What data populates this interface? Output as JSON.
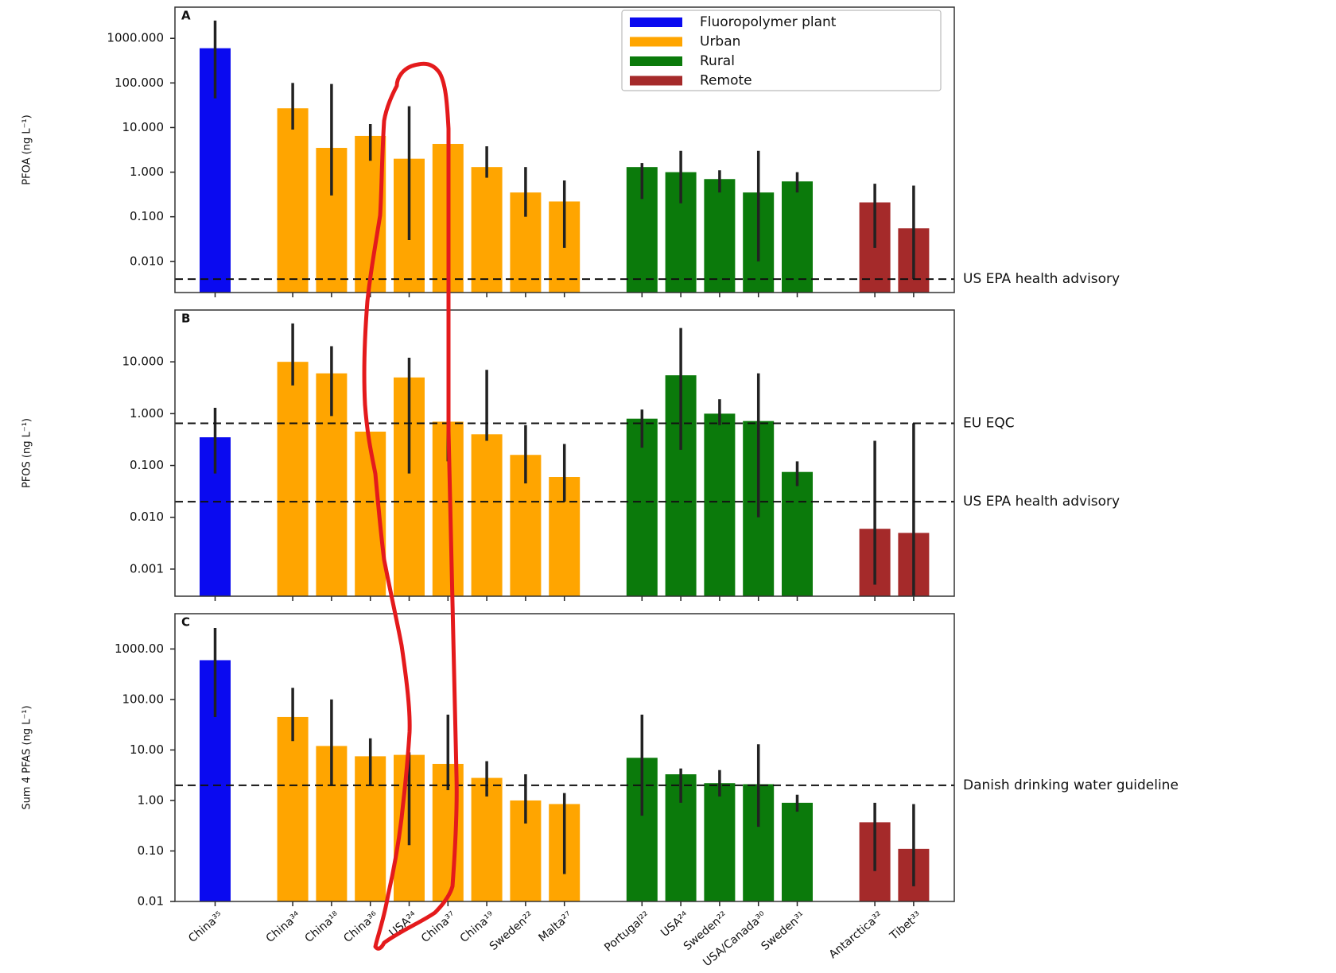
{
  "chart_data": [
    {
      "type": "bar",
      "label": "A",
      "y_label": "PFOA (ng L⁻¹)",
      "log_scale": true,
      "legend": "upper right",
      "ylim": [
        0.002,
        5000
      ],
      "yticks": [
        {
          "value": 0.01,
          "label": "0.010"
        },
        {
          "value": 0.1,
          "label": "0.100"
        },
        {
          "value": 1,
          "label": "1.000"
        },
        {
          "value": 10,
          "label": "10.000"
        },
        {
          "value": 100,
          "label": "100.000"
        },
        {
          "value": 1000,
          "label": "1000.000"
        }
      ],
      "reference_lines": [
        {
          "value": 0.004,
          "label": "US EPA health advisory"
        }
      ],
      "series": [
        {
          "name": "Fluoropolymer plant",
          "color": "#0a0af0",
          "values": [
            600,
            null,
            null,
            null,
            null,
            null,
            null,
            null,
            null,
            null,
            null,
            null,
            null,
            null,
            null,
            null,
            null,
            null,
            null
          ],
          "error_low": [
            45,
            null,
            null,
            null,
            null,
            null,
            null,
            null,
            null,
            null,
            null,
            null,
            null,
            null,
            null,
            null,
            null,
            null,
            null
          ],
          "error_high": [
            2500,
            null,
            null,
            null,
            null,
            null,
            null,
            null,
            null,
            null,
            null,
            null,
            null,
            null,
            null,
            null,
            null,
            null,
            null
          ]
        },
        {
          "name": "Urban",
          "color": "#ffa500",
          "values": [
            null,
            null,
            27,
            3.5,
            6.5,
            2,
            4.3,
            1.3,
            0.35,
            0.22,
            null,
            null,
            null,
            null,
            null,
            null,
            null,
            null,
            null
          ],
          "error_low": [
            null,
            null,
            9,
            0.3,
            1.8,
            0.03,
            null,
            0.75,
            0.1,
            0.02,
            null,
            null,
            null,
            null,
            null,
            null,
            null,
            null,
            null
          ],
          "error_high": [
            null,
            null,
            100,
            95,
            12,
            30,
            null,
            3.8,
            1.3,
            0.65,
            null,
            null,
            null,
            null,
            null,
            null,
            null,
            null,
            null
          ]
        },
        {
          "name": "Rural",
          "color": "#0b7a0b",
          "values": [
            null,
            null,
            null,
            null,
            null,
            null,
            null,
            null,
            null,
            null,
            null,
            1.3,
            1,
            0.7,
            0.35,
            0.62,
            null,
            null,
            null
          ],
          "error_low": [
            null,
            null,
            null,
            null,
            null,
            null,
            null,
            null,
            null,
            null,
            null,
            0.25,
            0.2,
            0.35,
            0.01,
            0.35,
            null,
            null,
            null
          ],
          "error_high": [
            null,
            null,
            null,
            null,
            null,
            null,
            null,
            null,
            null,
            null,
            null,
            1.6,
            3,
            1.1,
            3,
            1,
            null,
            null,
            null
          ]
        },
        {
          "name": "Remote",
          "color": "#a52a2a",
          "values": [
            null,
            null,
            null,
            null,
            null,
            null,
            null,
            null,
            null,
            null,
            null,
            null,
            null,
            null,
            null,
            null,
            null,
            0.21,
            0.055
          ],
          "error_low": [
            null,
            null,
            null,
            null,
            null,
            null,
            null,
            null,
            null,
            null,
            null,
            null,
            null,
            null,
            null,
            null,
            null,
            0.02,
            0.004
          ],
          "error_high": [
            null,
            null,
            null,
            null,
            null,
            null,
            null,
            null,
            null,
            null,
            null,
            null,
            null,
            null,
            null,
            null,
            null,
            0.55,
            0.5
          ]
        }
      ]
    },
    {
      "type": "bar",
      "label": "B",
      "y_label": "PFOS (ng L⁻¹)",
      "log_scale": true,
      "ylim": [
        0.0003,
        100
      ],
      "yticks": [
        {
          "value": 0.001,
          "label": "0.001"
        },
        {
          "value": 0.01,
          "label": "0.010"
        },
        {
          "value": 0.1,
          "label": "0.100"
        },
        {
          "value": 1,
          "label": "1.000"
        },
        {
          "value": 10,
          "label": "10.000"
        }
      ],
      "reference_lines": [
        {
          "value": 0.65,
          "label": "EU EQC"
        },
        {
          "value": 0.02,
          "label": "US EPA health advisory"
        }
      ],
      "series": [
        {
          "color": "#0a0af0",
          "values": [
            0.35,
            null,
            null,
            null,
            null,
            null,
            null,
            null,
            null,
            null,
            null,
            null,
            null,
            null,
            null,
            null,
            null,
            null,
            null
          ],
          "error_low": [
            0.07,
            null,
            null,
            null,
            null,
            null,
            null,
            null,
            null,
            null,
            null,
            null,
            null,
            null,
            null,
            null,
            null,
            null,
            null
          ],
          "error_high": [
            1.3,
            null,
            null,
            null,
            null,
            null,
            null,
            null,
            null,
            null,
            null,
            null,
            null,
            null,
            null,
            null,
            null,
            null,
            null
          ]
        },
        {
          "color": "#ffa500",
          "values": [
            null,
            null,
            10,
            6,
            0.45,
            5,
            0.7,
            0.4,
            0.16,
            0.06,
            null,
            null,
            null,
            null,
            null,
            null,
            null,
            null,
            null
          ],
          "error_low": [
            null,
            null,
            3.5,
            0.9,
            null,
            0.07,
            0.12,
            0.3,
            0.045,
            0.02,
            null,
            null,
            null,
            null,
            null,
            null,
            null,
            null,
            null
          ],
          "error_high": [
            null,
            null,
            55,
            20,
            null,
            12,
            1.5,
            7,
            0.6,
            0.26,
            null,
            null,
            null,
            null,
            null,
            null,
            null,
            null,
            null
          ]
        },
        {
          "color": "#0b7a0b",
          "values": [
            null,
            null,
            null,
            null,
            null,
            null,
            null,
            null,
            null,
            null,
            null,
            0.8,
            5.5,
            1,
            0.72,
            0.075,
            null,
            null,
            null
          ],
          "error_low": [
            null,
            null,
            null,
            null,
            null,
            null,
            null,
            null,
            null,
            null,
            null,
            0.22,
            0.2,
            0.6,
            0.01,
            0.04,
            null,
            null,
            null
          ],
          "error_high": [
            null,
            null,
            null,
            null,
            null,
            null,
            null,
            null,
            null,
            null,
            null,
            1.2,
            45,
            1.9,
            6,
            0.12,
            null,
            null,
            null
          ]
        },
        {
          "color": "#a52a2a",
          "values": [
            null,
            null,
            null,
            null,
            null,
            null,
            null,
            null,
            null,
            null,
            null,
            null,
            null,
            null,
            null,
            null,
            null,
            0.006,
            0.005
          ],
          "error_low": [
            null,
            null,
            null,
            null,
            null,
            null,
            null,
            null,
            null,
            null,
            null,
            null,
            null,
            null,
            null,
            null,
            null,
            0.0005,
            0.0003
          ],
          "error_high": [
            null,
            null,
            null,
            null,
            null,
            null,
            null,
            null,
            null,
            null,
            null,
            null,
            null,
            null,
            null,
            null,
            null,
            0.3,
            0.65
          ]
        }
      ]
    },
    {
      "type": "bar",
      "label": "C",
      "y_label": "Sum 4 PFAS (ng L⁻¹)",
      "log_scale": true,
      "categories": [
        "China³⁵",
        null,
        "China³⁴",
        "China¹⁸",
        "China³⁶",
        "USA²⁴",
        "China³⁷",
        "China¹⁹",
        "Sweden²²",
        "Malta²⁷",
        null,
        "Portugal²²",
        "USA²⁴",
        "Sweden²²",
        "USA/Canada³⁰",
        "Sweden³¹",
        null,
        "Antarctica³²",
        "Tibet³³"
      ],
      "ylim": [
        0.01,
        5000
      ],
      "yticks": [
        {
          "value": 0.01,
          "label": "0.01"
        },
        {
          "value": 0.1,
          "label": "0.10"
        },
        {
          "value": 1,
          "label": "1.00"
        },
        {
          "value": 10,
          "label": "10.00"
        },
        {
          "value": 100,
          "label": "100.00"
        },
        {
          "value": 1000,
          "label": "1000.00"
        }
      ],
      "reference_lines": [
        {
          "value": 2,
          "label": "Danish drinking water guideline"
        }
      ],
      "series": [
        {
          "color": "#0a0af0",
          "values": [
            600,
            null,
            null,
            null,
            null,
            null,
            null,
            null,
            null,
            null,
            null,
            null,
            null,
            null,
            null,
            null,
            null,
            null,
            null
          ],
          "error_low": [
            45,
            null,
            null,
            null,
            null,
            null,
            null,
            null,
            null,
            null,
            null,
            null,
            null,
            null,
            null,
            null,
            null,
            null,
            null
          ],
          "error_high": [
            2600,
            null,
            null,
            null,
            null,
            null,
            null,
            null,
            null,
            null,
            null,
            null,
            null,
            null,
            null,
            null,
            null,
            null,
            null
          ]
        },
        {
          "color": "#ffa500",
          "values": [
            null,
            null,
            45,
            12,
            7.5,
            8,
            5.3,
            2.8,
            1,
            0.85,
            null,
            null,
            null,
            null,
            null,
            null,
            null,
            null,
            null
          ],
          "error_low": [
            null,
            null,
            15,
            2,
            2,
            0.13,
            1.6,
            1.2,
            0.35,
            0.035,
            null,
            null,
            null,
            null,
            null,
            null,
            null,
            null,
            null
          ],
          "error_high": [
            null,
            null,
            170,
            100,
            17,
            9,
            50,
            6,
            3.3,
            1.4,
            null,
            null,
            null,
            null,
            null,
            null,
            null,
            null,
            null
          ]
        },
        {
          "color": "#0b7a0b",
          "values": [
            null,
            null,
            null,
            null,
            null,
            null,
            null,
            null,
            null,
            null,
            null,
            7,
            3.3,
            2.2,
            2.1,
            0.9,
            null,
            null,
            null
          ],
          "error_low": [
            null,
            null,
            null,
            null,
            null,
            null,
            null,
            null,
            null,
            null,
            null,
            0.5,
            0.9,
            1.2,
            0.3,
            0.6,
            null,
            null,
            null
          ],
          "error_high": [
            null,
            null,
            null,
            null,
            null,
            null,
            null,
            null,
            null,
            null,
            null,
            50,
            4.3,
            4,
            13,
            1.3,
            null,
            null,
            null
          ]
        },
        {
          "color": "#a52a2a",
          "values": [
            null,
            null,
            null,
            null,
            null,
            null,
            null,
            null,
            null,
            null,
            null,
            null,
            null,
            null,
            null,
            null,
            null,
            0.37,
            0.11
          ],
          "error_low": [
            null,
            null,
            null,
            null,
            null,
            null,
            null,
            null,
            null,
            null,
            null,
            null,
            null,
            null,
            null,
            null,
            null,
            0.04,
            0.02
          ],
          "error_high": [
            null,
            null,
            null,
            null,
            null,
            null,
            null,
            null,
            null,
            null,
            null,
            null,
            null,
            null,
            null,
            null,
            null,
            0.9,
            0.85
          ]
        }
      ]
    }
  ]
}
